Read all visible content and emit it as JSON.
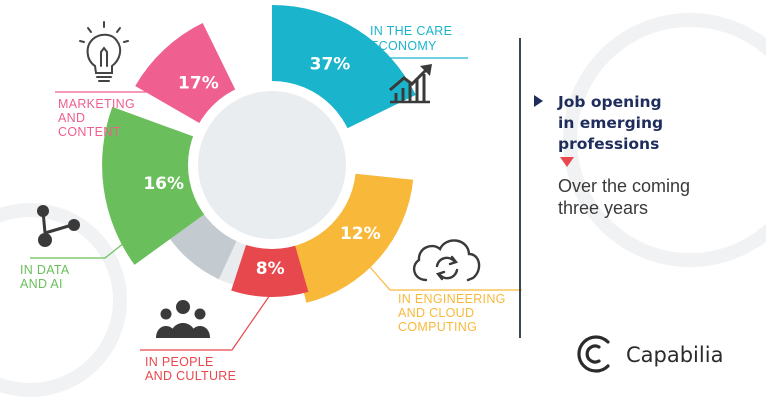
{
  "chart_data": {
    "type": "pie",
    "style": "donut with protruding highlighted segments",
    "segments": [
      {
        "label": "IN THE CARE ECONOMY",
        "value": 37,
        "value_label": "37%",
        "color": "#1ab5cc"
      },
      {
        "label": "IN ENGINEERING AND CLOUD COMPUTING",
        "value": 12,
        "value_label": "12%",
        "color": "#f8b93b"
      },
      {
        "label": "IN PEOPLE AND CULTURE",
        "value": 8,
        "value_label": "8%",
        "color": "#e7484d"
      },
      {
        "label": "IN DATA AND AI",
        "value": 16,
        "value_label": "16%",
        "color": "#6abf5c"
      },
      {
        "label": "MARKETING AND CONTENT",
        "value": 17,
        "value_label": "17%",
        "color": "#ef5f8f"
      }
    ],
    "ring_colors": {
      "dark": "#3b4753",
      "light": "#c4cbd0",
      "pale": "#e9ecef",
      "center": "#eaedf0"
    }
  },
  "labels": {
    "care": [
      "IN THE CARE",
      "ECONOMY"
    ],
    "engineering": [
      "IN ENGINEERING",
      "AND CLOUD",
      "COMPUTING"
    ],
    "people": [
      "IN PEOPLE",
      "AND CULTURE"
    ],
    "data": [
      "IN DATA",
      "AND AI"
    ],
    "marketing": [
      "MARKETING",
      "AND",
      "CONTENT"
    ]
  },
  "sidebar": {
    "headline": [
      "Job opening",
      "in emerging",
      "professions"
    ],
    "subline": [
      "Over the coming",
      "three years"
    ]
  },
  "brand": {
    "name": "Capabilia"
  },
  "icons": [
    "lightbulb-icon",
    "growth-chart-icon",
    "network-nodes-icon",
    "cloud-sync-icon",
    "people-group-icon",
    "capabilia-logo-icon"
  ],
  "colors": {
    "navy": "#1f2d5c",
    "divider": "#3b4753"
  }
}
